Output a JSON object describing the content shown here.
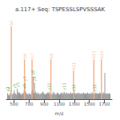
{
  "chart_data": {
    "type": "stem",
    "title": "a.117+ Seq: TSPESSLSPVSSSAK",
    "xlabel": "m/z",
    "xlim": [
      400,
      1800
    ],
    "ylim": [
      0,
      100
    ],
    "xticks": [
      500,
      700,
      900,
      1100,
      1300,
      1500,
      1700
    ],
    "tick_labels": "x",
    "grid": false,
    "series": [
      {
        "color": "#555555",
        "x": [
          415,
          425,
          435,
          445,
          455,
          475,
          485,
          495,
          505,
          515,
          525,
          535,
          545,
          555,
          565,
          575,
          585,
          595,
          605,
          615,
          625,
          635,
          645,
          655,
          665,
          675,
          685,
          695,
          705,
          715,
          725,
          735,
          745,
          755,
          765,
          775,
          785,
          795,
          805,
          815,
          825,
          835,
          845,
          855,
          865,
          875,
          885,
          895,
          905,
          915,
          925,
          935,
          945,
          955,
          965,
          975,
          985,
          995,
          1005,
          1015,
          1025,
          1035,
          1045,
          1055,
          1065,
          1075,
          1085,
          1095,
          1105,
          1115,
          1125,
          1135,
          1145,
          1155,
          1165,
          1175,
          1185,
          1195,
          1205,
          1215,
          1225,
          1235,
          1245,
          1255,
          1265,
          1275,
          1285,
          1295,
          1305,
          1315,
          1325,
          1335,
          1345,
          1355,
          1365,
          1375,
          1385,
          1395,
          1405,
          1415,
          1425,
          1435,
          1445,
          1455,
          1465,
          1475,
          1485,
          1495,
          1505,
          1515,
          1525,
          1535,
          1545,
          1555,
          1565,
          1575,
          1585,
          1595,
          1605,
          1615,
          1625,
          1635,
          1645,
          1655,
          1665,
          1675,
          1685,
          1695,
          1705,
          1715,
          1725,
          1735,
          1745,
          1755,
          1765,
          1775
        ],
        "values": [
          8,
          6,
          5,
          7,
          9,
          6,
          7,
          8,
          12,
          8,
          7,
          6,
          14,
          10,
          8,
          9,
          7,
          6,
          8,
          7,
          8,
          12,
          22,
          10,
          8,
          7,
          6,
          7,
          8,
          7,
          6,
          10,
          12,
          30,
          8,
          22,
          10,
          8,
          7,
          9,
          8,
          7,
          6,
          8,
          7,
          9,
          10,
          8,
          7,
          6,
          8,
          7,
          9,
          8,
          10,
          7,
          8,
          7,
          6,
          8,
          10,
          7,
          8,
          6,
          7,
          9,
          8,
          7,
          6,
          8,
          7,
          9,
          8,
          7,
          10,
          8,
          7,
          9,
          8,
          7,
          8,
          7,
          8,
          9,
          7,
          8,
          7,
          8,
          9,
          7,
          8,
          7,
          8,
          9,
          7,
          8,
          7,
          8,
          7,
          8,
          9,
          7,
          8,
          7,
          8,
          9,
          7,
          8,
          7,
          8,
          7,
          9,
          8,
          7,
          8,
          7,
          9,
          8,
          7,
          8,
          7,
          9,
          8,
          7,
          8,
          7,
          9,
          8,
          35,
          7,
          8,
          7,
          8,
          7,
          8,
          7
        ]
      },
      {
        "color": "#F5A982",
        "x": [
          465,
          640,
          740,
          990,
          1290,
          1560,
          1660
        ],
        "values": [
          97,
          53,
          53,
          53,
          38,
          53,
          53
        ]
      }
    ],
    "annotations": [
      {
        "x": 465,
        "y": 97,
        "text": "b4",
        "color": "#F5A982"
      },
      {
        "x": 640,
        "y": 53,
        "text": "b6",
        "color": "#F5A982"
      },
      {
        "x": 740,
        "y": 53,
        "text": "b7",
        "color": "#F5A982"
      },
      {
        "x": 990,
        "y": 53,
        "text": "b9",
        "color": "#F5A982"
      },
      {
        "x": 1290,
        "y": 38,
        "text": "b11",
        "color": "#F5A982"
      },
      {
        "x": 1560,
        "y": 53,
        "text": "b13",
        "color": "#F5A982"
      },
      {
        "x": 1660,
        "y": 53,
        "text": "b14",
        "color": "#F5A982"
      },
      {
        "x": 415,
        "y": 9,
        "text": "y3",
        "color": "#33aa33"
      },
      {
        "x": 435,
        "y": 9,
        "text": "y4",
        "color": "#33aa33"
      },
      {
        "x": 505,
        "y": 13,
        "text": "y5",
        "color": "#33aa33"
      },
      {
        "x": 545,
        "y": 15,
        "text": "y5",
        "color": "#33aa33"
      },
      {
        "x": 635,
        "y": 13,
        "text": "y6",
        "color": "#33aa33"
      },
      {
        "x": 645,
        "y": 23,
        "text": "y7",
        "color": "#33aa33"
      },
      {
        "x": 755,
        "y": 31,
        "text": "y8",
        "color": "#33aa33"
      },
      {
        "x": 775,
        "y": 23,
        "text": "y9",
        "color": "#33aa33"
      },
      {
        "x": 965,
        "y": 11,
        "text": "y10",
        "color": "#33aa33"
      },
      {
        "x": 1165,
        "y": 11,
        "text": "y11",
        "color": "#33aa33"
      },
      {
        "x": 1295,
        "y": 9,
        "text": "y12",
        "color": "#33aa33"
      },
      {
        "x": 1565,
        "y": 9,
        "text": "y13",
        "color": "#33aa33"
      }
    ]
  }
}
